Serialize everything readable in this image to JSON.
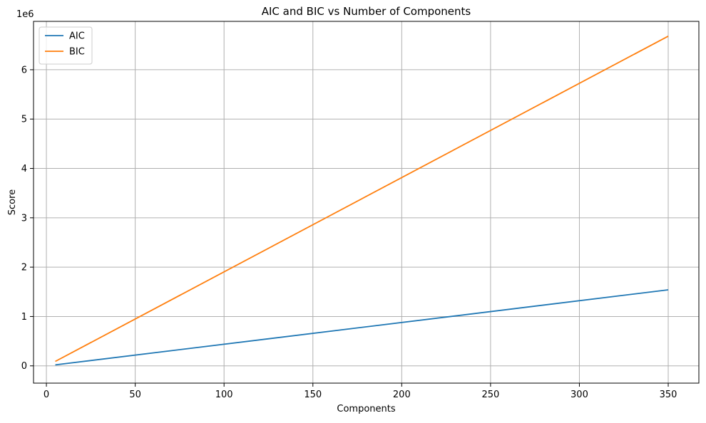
{
  "chart_data": {
    "type": "line",
    "title": "AIC and BIC vs Number of Components",
    "xlabel": "Components",
    "ylabel": "Score",
    "y_offset_label": "1e6",
    "xlim": [
      -7.25,
      367.25
    ],
    "ylim": [
      -0.35,
      6.98
    ],
    "x_ticks": [
      0,
      50,
      100,
      150,
      200,
      250,
      300,
      350
    ],
    "y_ticks": [
      0,
      1,
      2,
      3,
      4,
      5,
      6
    ],
    "x_tick_labels": [
      "0",
      "50",
      "100",
      "150",
      "200",
      "250",
      "300",
      "350"
    ],
    "y_tick_labels": [
      "0",
      "1",
      "2",
      "3",
      "4",
      "5",
      "6"
    ],
    "grid": true,
    "legend_position": "top-left",
    "x": [
      5,
      350
    ],
    "series": [
      {
        "name": "AIC",
        "color": "#1f77b4",
        "values": [
          0.02,
          1.54
        ]
      },
      {
        "name": "BIC",
        "color": "#ff7f0e",
        "values": [
          0.09,
          6.68
        ]
      }
    ]
  }
}
